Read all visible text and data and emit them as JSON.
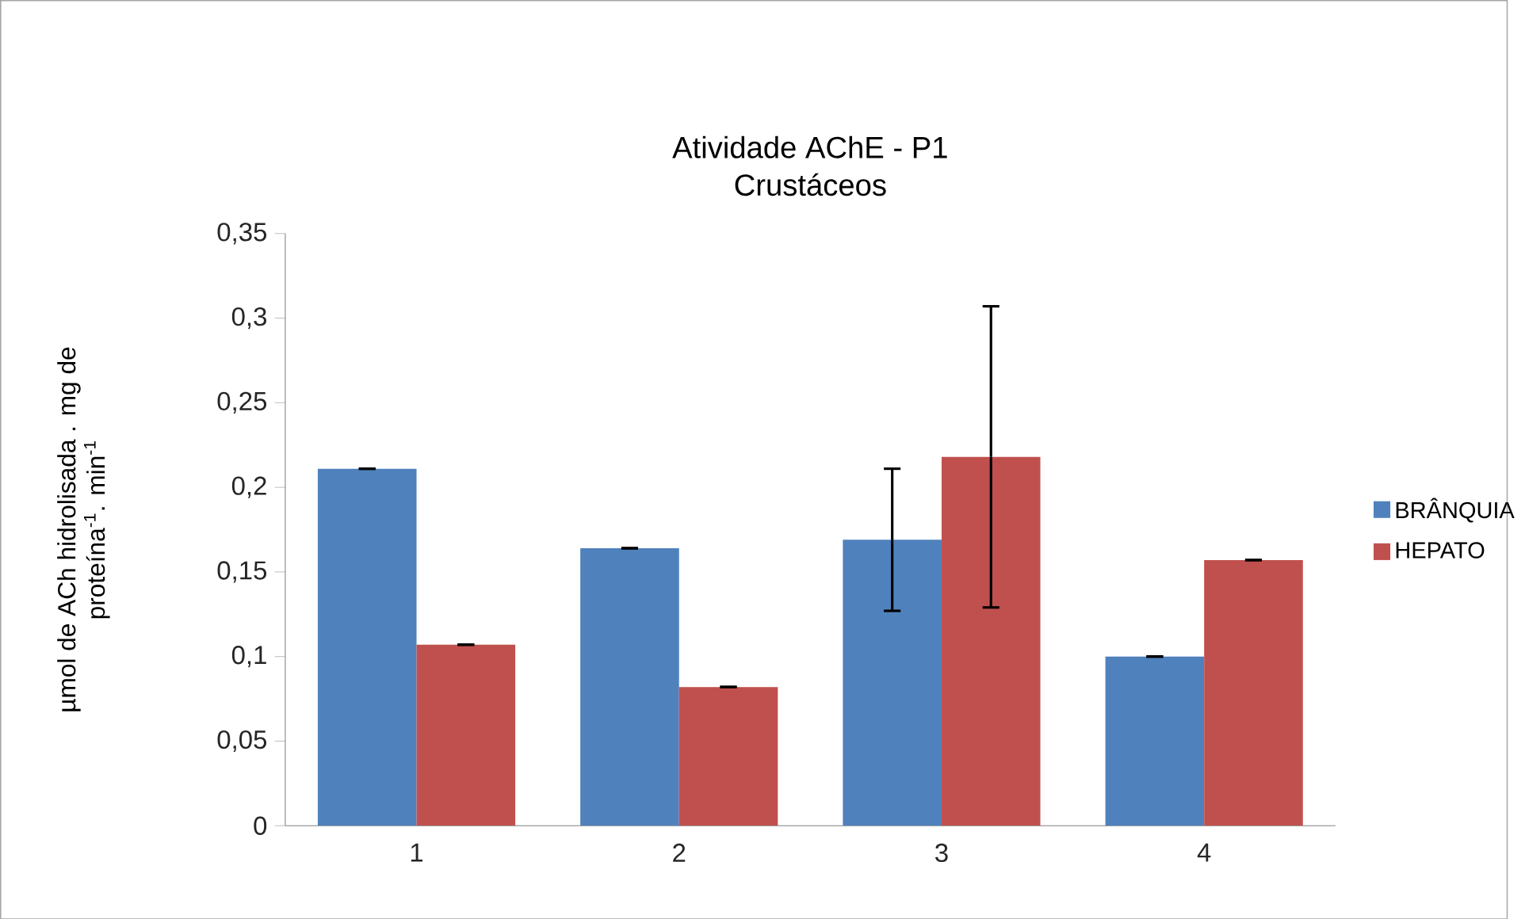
{
  "chart_data": {
    "type": "bar",
    "title": "Atividade AChE - P1",
    "subtitle": "Crustáceos",
    "ylabel": "µmol de ACh hidrolisada . mg de proteína$^{-1}$. min$^{-1}$",
    "categories": [
      "1",
      "2",
      "3",
      "4"
    ],
    "series": [
      {
        "name": "BRÂNQUIA",
        "color": "#4f81bd",
        "values": [
          0.211,
          0.164,
          0.169,
          0.1
        ],
        "errors": [
          0,
          0,
          0.042,
          0
        ]
      },
      {
        "name": "HEPATO",
        "color": "#c0504d",
        "values": [
          0.107,
          0.082,
          0.218,
          0.157
        ],
        "errors": [
          0,
          0,
          0.089,
          0
        ]
      }
    ],
    "ylim": [
      0,
      0.35
    ],
    "yticks": [
      0,
      {
        "value": 0.05,
        "label": "0,05"
      },
      {
        "value": 0.1,
        "label": "0,1"
      },
      {
        "value": 0.15,
        "label": "0,15"
      },
      {
        "value": 0.2,
        "label": "0,2"
      },
      {
        "value": 0.25,
        "label": "0,25"
      },
      {
        "value": 0.3,
        "label": "0,3"
      },
      {
        "value": 0.35,
        "label": "0,35"
      }
    ],
    "legend": "right"
  }
}
